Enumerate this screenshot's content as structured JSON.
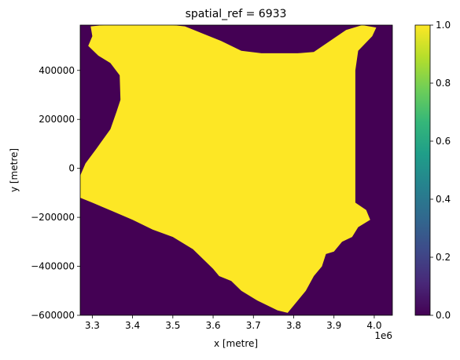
{
  "chart_data": {
    "type": "heatmap",
    "title": "spatial_ref = 6933",
    "xlabel": "x [metre]",
    "ylabel": "y [metre]",
    "x_offset_label": "1e6",
    "xlim": [
      3.27,
      4.045
    ],
    "ylim": [
      -600000,
      585000
    ],
    "x_ticks": [
      {
        "value": 3.3,
        "label": "3.3"
      },
      {
        "value": 3.4,
        "label": "3.4"
      },
      {
        "value": 3.5,
        "label": "3.5"
      },
      {
        "value": 3.6,
        "label": "3.6"
      },
      {
        "value": 3.7,
        "label": "3.7"
      },
      {
        "value": 3.8,
        "label": "3.8"
      },
      {
        "value": 3.9,
        "label": "3.9"
      },
      {
        "value": 4.0,
        "label": "4.0"
      }
    ],
    "y_ticks": [
      {
        "value": 400000,
        "label": "400000"
      },
      {
        "value": 200000,
        "label": "200000"
      },
      {
        "value": 0,
        "label": "0"
      },
      {
        "value": -200000,
        "label": "−200000"
      },
      {
        "value": -400000,
        "label": "−400000"
      },
      {
        "value": -600000,
        "label": "−600000"
      }
    ],
    "colorbar": {
      "colormap": "viridis",
      "range": [
        0.0,
        1.0
      ],
      "ticks": [
        {
          "value": 0.0,
          "label": "0.0"
        },
        {
          "value": 0.2,
          "label": "0.2"
        },
        {
          "value": 0.4,
          "label": "0.4"
        },
        {
          "value": 0.6,
          "label": "0.6"
        },
        {
          "value": 0.8,
          "label": "0.8"
        },
        {
          "value": 1.0,
          "label": "1.0"
        }
      ],
      "stops": [
        "#440154",
        "#482878",
        "#3e4a89",
        "#31688e",
        "#26828e",
        "#1f9e89",
        "#35b779",
        "#6ece58",
        "#b5de2b",
        "#fde725"
      ]
    },
    "background_value": 0.0,
    "mask_value": 1.0,
    "background_color": "#440154",
    "mask_color": "#fde725",
    "region_outline": [
      [
        3.296,
        580000
      ],
      [
        3.33,
        585000
      ],
      [
        3.5,
        585000
      ],
      [
        3.53,
        580000
      ],
      [
        3.62,
        520000
      ],
      [
        3.67,
        480000
      ],
      [
        3.72,
        470000
      ],
      [
        3.81,
        470000
      ],
      [
        3.85,
        475000
      ],
      [
        3.93,
        565000
      ],
      [
        3.97,
        585000
      ],
      [
        4.005,
        575000
      ],
      [
        3.995,
        540000
      ],
      [
        3.96,
        480000
      ],
      [
        3.953,
        400000
      ],
      [
        3.953,
        -140000
      ],
      [
        3.98,
        -170000
      ],
      [
        3.99,
        -210000
      ],
      [
        3.96,
        -240000
      ],
      [
        3.945,
        -280000
      ],
      [
        3.92,
        -300000
      ],
      [
        3.9,
        -340000
      ],
      [
        3.88,
        -350000
      ],
      [
        3.87,
        -400000
      ],
      [
        3.85,
        -440000
      ],
      [
        3.83,
        -500000
      ],
      [
        3.8,
        -560000
      ],
      [
        3.785,
        -590000
      ],
      [
        3.76,
        -580000
      ],
      [
        3.71,
        -540000
      ],
      [
        3.67,
        -500000
      ],
      [
        3.645,
        -460000
      ],
      [
        3.615,
        -440000
      ],
      [
        3.6,
        -410000
      ],
      [
        3.55,
        -330000
      ],
      [
        3.5,
        -280000
      ],
      [
        3.45,
        -250000
      ],
      [
        3.4,
        -210000
      ],
      [
        3.35,
        -175000
      ],
      [
        3.3,
        -140000
      ],
      [
        3.27,
        -120000
      ],
      [
        3.27,
        -30000
      ],
      [
        3.283,
        20000
      ],
      [
        3.31,
        80000
      ],
      [
        3.345,
        160000
      ],
      [
        3.36,
        230000
      ],
      [
        3.37,
        280000
      ],
      [
        3.368,
        380000
      ],
      [
        3.345,
        430000
      ],
      [
        3.315,
        460000
      ],
      [
        3.29,
        500000
      ],
      [
        3.3,
        540000
      ]
    ]
  }
}
